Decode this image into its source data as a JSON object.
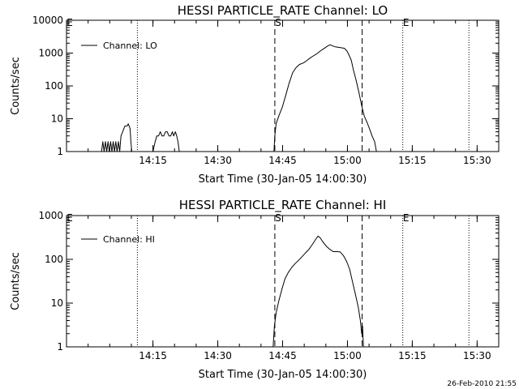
{
  "chart_data": [
    {
      "type": "line",
      "title": "HESSI PARTICLE_RATE Channel: LO",
      "xlabel": "Start Time (30-Jan-05 14:00:30)",
      "ylabel": "Counts/sec",
      "yscale": "log",
      "ylim": [
        1,
        10000
      ],
      "xlim_minutes": [
        0.5,
        100.5
      ],
      "x_ticks": [
        {
          "minute": 20.5,
          "label": "14:15"
        },
        {
          "minute": 35.5,
          "label": "14:30"
        },
        {
          "minute": 50.5,
          "label": "14:45"
        },
        {
          "minute": 65.5,
          "label": "15:00"
        },
        {
          "minute": 80.5,
          "label": "15:15"
        },
        {
          "minute": 95.5,
          "label": "15:30"
        }
      ],
      "y_ticks": [
        {
          "value": 1,
          "label": "1"
        },
        {
          "value": 10,
          "label": "10"
        },
        {
          "value": 100,
          "label": "100"
        },
        {
          "value": 1000,
          "label": "1000"
        },
        {
          "value": 10000,
          "label": "10000"
        }
      ],
      "markers": [
        {
          "minute": 0.5,
          "style": "dotted",
          "label": "E"
        },
        {
          "minute": 16.9,
          "style": "dotted",
          "label": ""
        },
        {
          "minute": 48.7,
          "style": "dashed",
          "label": "S"
        },
        {
          "minute": 68.9,
          "style": "dashed",
          "label": ""
        },
        {
          "minute": 78.3,
          "style": "dotted",
          "label": "E"
        },
        {
          "minute": 93.6,
          "style": "dotted",
          "label": ""
        }
      ],
      "legend": {
        "position": "top-left"
      },
      "series": [
        {
          "name": "Channel: LO",
          "points": [
            [
              8.6,
              1
            ],
            [
              8.9,
              2
            ],
            [
              9.2,
              1
            ],
            [
              9.5,
              2
            ],
            [
              9.8,
              1
            ],
            [
              10.1,
              2
            ],
            [
              10.4,
              1
            ],
            [
              10.7,
              2
            ],
            [
              11.0,
              1
            ],
            [
              11.3,
              2
            ],
            [
              11.6,
              1
            ],
            [
              11.9,
              2
            ],
            [
              12.2,
              1
            ],
            [
              12.5,
              2
            ],
            [
              12.8,
              1
            ],
            [
              13.1,
              3
            ],
            [
              13.5,
              4
            ],
            [
              14.0,
              6
            ],
            [
              14.5,
              6
            ],
            [
              14.8,
              7
            ],
            [
              15.2,
              5
            ],
            [
              15.4,
              2
            ],
            [
              15.6,
              1
            ],
            [
              20.5,
              1
            ],
            [
              21.0,
              2
            ],
            [
              21.4,
              3
            ],
            [
              21.8,
              3
            ],
            [
              22.2,
              4
            ],
            [
              22.6,
              3
            ],
            [
              23.0,
              3
            ],
            [
              23.4,
              4
            ],
            [
              23.8,
              4
            ],
            [
              24.2,
              3
            ],
            [
              24.6,
              3
            ],
            [
              25.0,
              4
            ],
            [
              25.3,
              3
            ],
            [
              25.7,
              4
            ],
            [
              26.0,
              3
            ],
            [
              26.3,
              2
            ],
            [
              26.6,
              1
            ],
            [
              48.5,
              1
            ],
            [
              48.7,
              3
            ],
            [
              49.0,
              7
            ],
            [
              49.6,
              12
            ],
            [
              50.4,
              22
            ],
            [
              51.2,
              50
            ],
            [
              52.0,
              120
            ],
            [
              52.8,
              250
            ],
            [
              53.6,
              360
            ],
            [
              54.4,
              450
            ],
            [
              55.3,
              500
            ],
            [
              56.0,
              580
            ],
            [
              56.8,
              700
            ],
            [
              57.6,
              820
            ],
            [
              58.4,
              950
            ],
            [
              59.2,
              1150
            ],
            [
              60.0,
              1350
            ],
            [
              60.8,
              1600
            ],
            [
              61.5,
              1800
            ],
            [
              62.1,
              1650
            ],
            [
              62.7,
              1550
            ],
            [
              63.4,
              1500
            ],
            [
              64.2,
              1450
            ],
            [
              64.8,
              1400
            ],
            [
              65.4,
              1150
            ],
            [
              65.9,
              850
            ],
            [
              66.4,
              600
            ],
            [
              66.9,
              300
            ],
            [
              67.5,
              150
            ],
            [
              68.2,
              60
            ],
            [
              68.8,
              25
            ],
            [
              69.4,
              12
            ],
            [
              70.0,
              8
            ],
            [
              70.6,
              5
            ],
            [
              71.2,
              3
            ],
            [
              71.8,
              2
            ],
            [
              72.2,
              1
            ]
          ]
        }
      ]
    },
    {
      "type": "line",
      "title": "HESSI PARTICLE_RATE Channel: HI",
      "xlabel": "Start Time (30-Jan-05 14:00:30)",
      "ylabel": "Counts/sec",
      "yscale": "log",
      "ylim": [
        1,
        1000
      ],
      "xlim_minutes": [
        0.5,
        100.5
      ],
      "x_ticks": [
        {
          "minute": 20.5,
          "label": "14:15"
        },
        {
          "minute": 35.5,
          "label": "14:30"
        },
        {
          "minute": 50.5,
          "label": "14:45"
        },
        {
          "minute": 65.5,
          "label": "15:00"
        },
        {
          "minute": 80.5,
          "label": "15:15"
        },
        {
          "minute": 95.5,
          "label": "15:30"
        }
      ],
      "y_ticks": [
        {
          "value": 1,
          "label": "1"
        },
        {
          "value": 10,
          "label": "10"
        },
        {
          "value": 100,
          "label": "100"
        },
        {
          "value": 1000,
          "label": "1000"
        }
      ],
      "markers": [
        {
          "minute": 0.5,
          "style": "dotted",
          "label": "E"
        },
        {
          "minute": 16.9,
          "style": "dotted",
          "label": ""
        },
        {
          "minute": 48.7,
          "style": "dashed",
          "label": "S"
        },
        {
          "minute": 68.9,
          "style": "dashed",
          "label": ""
        },
        {
          "minute": 78.3,
          "style": "dotted",
          "label": "E"
        },
        {
          "minute": 93.6,
          "style": "dotted",
          "label": ""
        }
      ],
      "legend": {
        "position": "top-left"
      },
      "series": [
        {
          "name": "Channel: HI",
          "points": [
            [
              48.3,
              1
            ],
            [
              48.6,
              3
            ],
            [
              49.0,
              6
            ],
            [
              49.6,
              11
            ],
            [
              50.3,
              20
            ],
            [
              51.0,
              35
            ],
            [
              51.8,
              50
            ],
            [
              52.6,
              65
            ],
            [
              53.4,
              80
            ],
            [
              54.2,
              95
            ],
            [
              55.0,
              115
            ],
            [
              55.8,
              140
            ],
            [
              56.6,
              170
            ],
            [
              57.4,
              220
            ],
            [
              58.2,
              290
            ],
            [
              58.7,
              340
            ],
            [
              59.2,
              310
            ],
            [
              59.8,
              250
            ],
            [
              60.6,
              200
            ],
            [
              61.4,
              170
            ],
            [
              62.2,
              150
            ],
            [
              63.0,
              150
            ],
            [
              63.8,
              148
            ],
            [
              64.6,
              120
            ],
            [
              65.3,
              90
            ],
            [
              66.0,
              60
            ],
            [
              66.7,
              30
            ],
            [
              67.4,
              15
            ],
            [
              68.0,
              8
            ],
            [
              68.5,
              4
            ],
            [
              68.8,
              2
            ],
            [
              69.0,
              3
            ],
            [
              69.2,
              1
            ]
          ]
        }
      ]
    }
  ],
  "footer": {
    "timestamp": "26-Feb-2010 21:55"
  }
}
